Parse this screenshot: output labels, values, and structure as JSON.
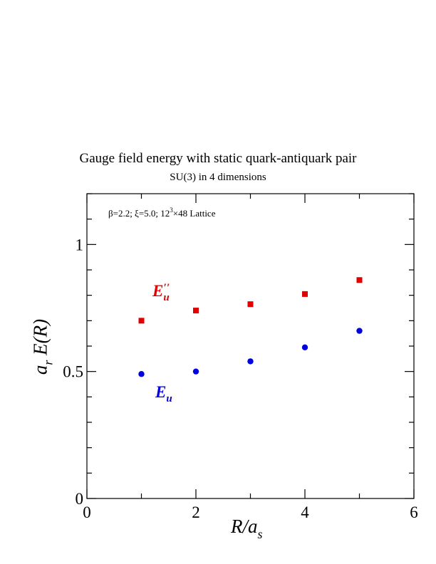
{
  "chart_data": {
    "type": "scatter",
    "title": "Gauge field energy with static quark-antiquark pair",
    "subtitle": "SU(3) in 4 dimensions",
    "annotation": {
      "parts": [
        "β=2.2;  ξ=5.0;  12",
        "3",
        "×48 Lattice"
      ]
    },
    "xlabel": {
      "main": "R/a",
      "sub": "s"
    },
    "ylabel": {
      "pre": "a",
      "sub": "r",
      "post": " E(R)"
    },
    "xlim": [
      0,
      6
    ],
    "ylim": [
      0,
      1.2
    ],
    "xticks": [
      0,
      2,
      4,
      6
    ],
    "xtick_labels": [
      "0",
      "2",
      "4",
      "6"
    ],
    "yticks": [
      0,
      0.5,
      1
    ],
    "ytick_labels": [
      "0",
      "0.5",
      "1"
    ],
    "grid": false,
    "series": [
      {
        "label_main": "E",
        "label_sub": "u",
        "label_sup": "′′",
        "marker": "square",
        "color": "#e00000",
        "x": [
          1,
          2,
          3,
          4,
          5
        ],
        "y": [
          0.7,
          0.74,
          0.765,
          0.805,
          0.86
        ]
      },
      {
        "label_main": "E",
        "label_sub": "u",
        "marker": "circle",
        "color": "#0000e0",
        "x": [
          1,
          2,
          3,
          4,
          5
        ],
        "y": [
          0.49,
          0.5,
          0.54,
          0.595,
          0.66
        ]
      }
    ]
  }
}
